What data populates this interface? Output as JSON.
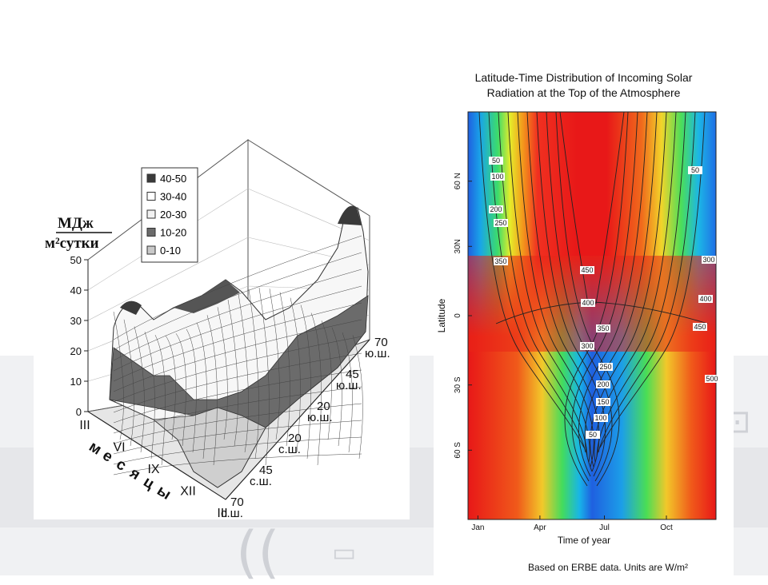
{
  "chart_data": [
    {
      "type": "surface3d",
      "zlabel_top": "МДж",
      "zlabel_bottom": "м²сутки",
      "z_ticks": [
        "0",
        "10",
        "20",
        "30",
        "40",
        "50"
      ],
      "month_axis_label": "месяцы",
      "month_ticks": [
        "III",
        "VI",
        "IX",
        "XII",
        "III"
      ],
      "lat_ticks": [
        "70\nю.ш.",
        "45\nю.ш.",
        "20\nю.ш.",
        "20\nс.ш.",
        "45\nс.ш.",
        "70\nс.ш."
      ],
      "legend": [
        {
          "label": "40-50",
          "color": "#3a3a3a"
        },
        {
          "label": "30-40",
          "color": "#ffffff"
        },
        {
          "label": "20-30",
          "color": "#f2f2f2"
        },
        {
          "label": "10-20",
          "color": "#6b6b6b"
        },
        {
          "label": "0-10",
          "color": "#c9c9c9"
        }
      ]
    },
    {
      "type": "heatmap",
      "title_line1": "Latitude-Time Distribution of Incoming Solar",
      "title_line2": "Radiation at the Top of the Atmosphere",
      "xlabel": "Time of year",
      "ylabel": "Latitude",
      "x_ticks": [
        "Jan",
        "Apr",
        "Jul",
        "Oct"
      ],
      "y_ticks": [
        "60 N",
        "30N",
        "0",
        "30 S",
        "60 S"
      ],
      "contour_labels_north_left": [
        "50",
        "100",
        "200",
        "250",
        "350"
      ],
      "contour_labels_center": [
        "450",
        "400",
        "350",
        "300",
        "250",
        "200",
        "150",
        "100",
        "50"
      ],
      "contour_labels_right": [
        "50",
        "300",
        "400",
        "450",
        "500"
      ],
      "note": "Based on ERBE data. Units are W/m²"
    }
  ]
}
